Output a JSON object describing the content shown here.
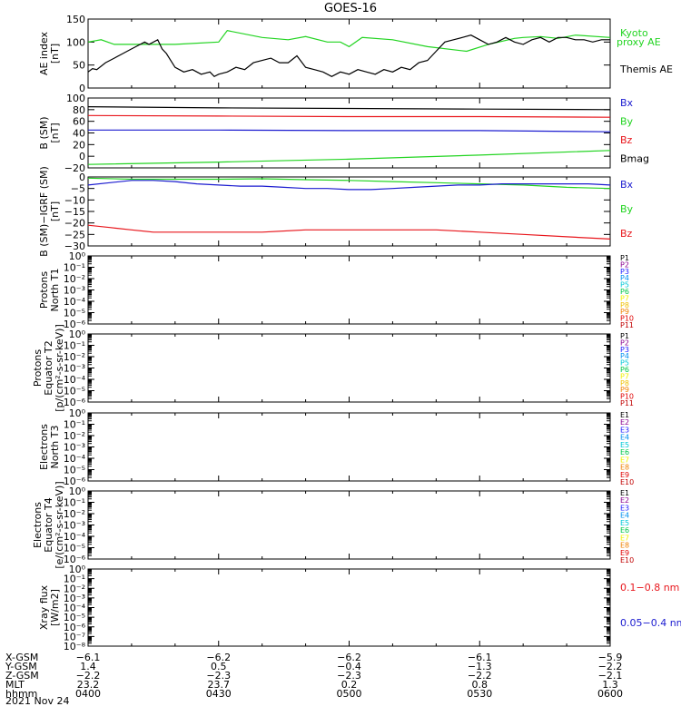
{
  "title": "GOES-16",
  "date": "2021 Nov 24",
  "colors": {
    "black": "#000000",
    "red": "#e8161c",
    "green": "#22d421",
    "blue": "#1c1cd0"
  },
  "chart_data": [
    {
      "id": "ae",
      "type": "line",
      "ylabel": [
        "AE index",
        "[nT]"
      ],
      "ylim": [
        0,
        150
      ],
      "yticks": [
        "0",
        "50",
        "100",
        "150"
      ],
      "legend": [
        {
          "label": "Kyoto",
          "color": "green"
        },
        {
          "label": "proxy AE",
          "color": "green"
        },
        {
          "label": "Themis AE",
          "color": "black"
        }
      ],
      "series": [
        {
          "name": "Kyoto proxy AE",
          "color": "green",
          "x": [
            0,
            3,
            6,
            8,
            12,
            20,
            30,
            32,
            40,
            46,
            50,
            55,
            58,
            60,
            63,
            70,
            78,
            87,
            92,
            98,
            100,
            104,
            108,
            112,
            120
          ],
          "y": [
            100,
            105,
            95,
            95,
            95,
            95,
            100,
            125,
            110,
            105,
            112,
            100,
            100,
            90,
            110,
            105,
            90,
            80,
            95,
            108,
            110,
            112,
            108,
            115,
            110
          ]
        },
        {
          "name": "Themis AE",
          "color": "black",
          "x": [
            0,
            1,
            2,
            4,
            6,
            8,
            10,
            11,
            13,
            14,
            16,
            17,
            18,
            19,
            20,
            22,
            24,
            26,
            28,
            29,
            30,
            32,
            34,
            36,
            38,
            40,
            42,
            44,
            46,
            48,
            50,
            52,
            54,
            56,
            57,
            58,
            60,
            62,
            64,
            66,
            68,
            70,
            72,
            74,
            76,
            78,
            80,
            82,
            84,
            86,
            88,
            90,
            92,
            94,
            96,
            98,
            100,
            102,
            104,
            106,
            108,
            110,
            112,
            114,
            116,
            118,
            120
          ],
          "y": [
            35,
            42,
            40,
            55,
            65,
            75,
            85,
            90,
            100,
            95,
            105,
            85,
            75,
            60,
            45,
            35,
            40,
            30,
            35,
            25,
            30,
            35,
            45,
            40,
            55,
            60,
            65,
            55,
            55,
            70,
            45,
            40,
            35,
            25,
            30,
            35,
            30,
            40,
            35,
            30,
            40,
            35,
            45,
            40,
            55,
            60,
            80,
            100,
            105,
            110,
            115,
            105,
            95,
            100,
            110,
            100,
            95,
            105,
            110,
            100,
            110,
            110,
            105,
            105,
            100,
            105,
            105
          ]
        }
      ]
    },
    {
      "id": "bsm",
      "type": "line",
      "ylabel": [
        "B (SM)",
        "[nT]"
      ],
      "ylim": [
        -20,
        100
      ],
      "yticks": [
        "−20",
        "0",
        "20",
        "40",
        "60",
        "80",
        "100"
      ],
      "legend": [
        {
          "label": "Bx",
          "color": "blue"
        },
        {
          "label": "By",
          "color": "green"
        },
        {
          "label": "Bz",
          "color": "red"
        },
        {
          "label": "Bmag",
          "color": "black"
        }
      ],
      "series": [
        {
          "name": "Bmag",
          "color": "black",
          "x": [
            0,
            30,
            60,
            90,
            120
          ],
          "y": [
            85,
            83,
            82,
            81,
            80
          ]
        },
        {
          "name": "Bz",
          "color": "red",
          "x": [
            0,
            30,
            60,
            90,
            120
          ],
          "y": [
            70,
            69,
            68,
            68,
            67
          ]
        },
        {
          "name": "Bx",
          "color": "blue",
          "x": [
            0,
            30,
            60,
            90,
            120
          ],
          "y": [
            45,
            45,
            44,
            44,
            42
          ]
        },
        {
          "name": "By",
          "color": "green",
          "x": [
            0,
            30,
            60,
            90,
            120
          ],
          "y": [
            -14,
            -10,
            -5,
            2,
            10
          ]
        }
      ]
    },
    {
      "id": "bigrf",
      "type": "line",
      "ylabel": [
        "B (SM)−IGRF (SM)",
        "[nT]"
      ],
      "ylim": [
        -30,
        0
      ],
      "yticks": [
        "−30",
        "−25",
        "−20",
        "−15",
        "−10",
        "−5",
        "0"
      ],
      "legend": [
        {
          "label": "Bx",
          "color": "blue"
        },
        {
          "label": "By",
          "color": "green"
        },
        {
          "label": "Bz",
          "color": "red"
        }
      ],
      "series": [
        {
          "name": "By",
          "color": "green",
          "x": [
            0,
            10,
            20,
            30,
            40,
            50,
            60,
            70,
            80,
            90,
            100,
            110,
            120
          ],
          "y": [
            -0.5,
            -1,
            -1,
            -1,
            -0.8,
            -1.2,
            -1.5,
            -2,
            -2.5,
            -3,
            -3.5,
            -4.5,
            -5
          ]
        },
        {
          "name": "Bx",
          "color": "blue",
          "x": [
            0,
            5,
            10,
            15,
            20,
            25,
            30,
            35,
            40,
            45,
            50,
            55,
            60,
            65,
            70,
            75,
            80,
            85,
            90,
            95,
            100,
            105,
            110,
            115,
            120
          ],
          "y": [
            -3.5,
            -2.5,
            -1.5,
            -1.5,
            -2,
            -3,
            -3.5,
            -4,
            -4,
            -4.5,
            -5,
            -5,
            -5.5,
            -5.5,
            -5,
            -4.5,
            -4,
            -3.5,
            -3.5,
            -3,
            -3,
            -3,
            -3,
            -3,
            -3.5
          ]
        },
        {
          "name": "Bz",
          "color": "red",
          "x": [
            0,
            5,
            10,
            15,
            20,
            25,
            30,
            40,
            50,
            55,
            60,
            70,
            80,
            90,
            100,
            110,
            120
          ],
          "y": [
            -21,
            -22,
            -23,
            -24,
            -24,
            -24,
            -24,
            -24,
            -23,
            -23,
            -23,
            -23,
            -23,
            -24,
            -25,
            -26,
            -27
          ]
        }
      ]
    },
    {
      "id": "pn",
      "type": "line",
      "ylabel": [
        "Protons",
        "North T1"
      ],
      "ylim": [
        -6,
        0
      ],
      "yticks": [
        "10⁻⁶",
        "10⁻⁵",
        "10⁻⁴",
        "10⁻³",
        "10⁻²",
        "10⁻¹",
        "10⁰"
      ],
      "legend": [
        {
          "label": "P1",
          "color": "#000000"
        },
        {
          "label": "P2",
          "color": "#8a0090"
        },
        {
          "label": "P3",
          "color": "#2020ff"
        },
        {
          "label": "P4",
          "color": "#0090f0"
        },
        {
          "label": "P5",
          "color": "#00c8d8"
        },
        {
          "label": "P6",
          "color": "#00c848"
        },
        {
          "label": "P7",
          "color": "#f0f000"
        },
        {
          "label": "P8",
          "color": "#f0c000"
        },
        {
          "label": "P9",
          "color": "#f08000"
        },
        {
          "label": "P10",
          "color": "#e00000"
        },
        {
          "label": "P11",
          "color": "#c00000"
        }
      ],
      "series": []
    },
    {
      "id": "pe",
      "type": "line",
      "ylabel": [
        "Protons",
        "Equator T2",
        "[p/(cm²-s-sr-keV)]"
      ],
      "ylim": [
        -6,
        0
      ],
      "yticks": [
        "10⁻⁶",
        "10⁻⁵",
        "10⁻⁴",
        "10⁻³",
        "10⁻²",
        "10⁻¹",
        "10⁰"
      ],
      "legend": [
        {
          "label": "P1",
          "color": "#000000"
        },
        {
          "label": "P2",
          "color": "#8a0090"
        },
        {
          "label": "P3",
          "color": "#2020ff"
        },
        {
          "label": "P4",
          "color": "#0090f0"
        },
        {
          "label": "P5",
          "color": "#00c8d8"
        },
        {
          "label": "P6",
          "color": "#00c848"
        },
        {
          "label": "P7",
          "color": "#f0f000"
        },
        {
          "label": "P8",
          "color": "#f0c000"
        },
        {
          "label": "P9",
          "color": "#f08000"
        },
        {
          "label": "P10",
          "color": "#e00000"
        },
        {
          "label": "P11",
          "color": "#c00000"
        }
      ],
      "series": []
    },
    {
      "id": "en",
      "type": "line",
      "ylabel": [
        "Electrons",
        "North T3"
      ],
      "ylim": [
        -6,
        0
      ],
      "yticks": [
        "10⁻⁶",
        "10⁻⁵",
        "10⁻⁴",
        "10⁻³",
        "10⁻²",
        "10⁻¹",
        "10⁰"
      ],
      "legend": [
        {
          "label": "E1",
          "color": "#000000"
        },
        {
          "label": "E2",
          "color": "#8a0090"
        },
        {
          "label": "E3",
          "color": "#2020ff"
        },
        {
          "label": "E4",
          "color": "#0090f0"
        },
        {
          "label": "E5",
          "color": "#00c8d8"
        },
        {
          "label": "E6",
          "color": "#00c848"
        },
        {
          "label": "E7",
          "color": "#f0f000"
        },
        {
          "label": "E8",
          "color": "#f08000"
        },
        {
          "label": "E9",
          "color": "#e00000"
        },
        {
          "label": "E10",
          "color": "#c00000"
        }
      ],
      "series": []
    },
    {
      "id": "ee",
      "type": "line",
      "ylabel": [
        "Electrons",
        "Equator T4",
        "[e/(cm²-s-sr-keV)]"
      ],
      "ylim": [
        -6,
        0
      ],
      "yticks": [
        "10⁻⁶",
        "10⁻⁵",
        "10⁻⁴",
        "10⁻³",
        "10⁻²",
        "10⁻¹",
        "10⁰"
      ],
      "legend": [
        {
          "label": "E1",
          "color": "#000000"
        },
        {
          "label": "E2",
          "color": "#8a0090"
        },
        {
          "label": "E3",
          "color": "#2020ff"
        },
        {
          "label": "E4",
          "color": "#0090f0"
        },
        {
          "label": "E5",
          "color": "#00c8d8"
        },
        {
          "label": "E6",
          "color": "#00c848"
        },
        {
          "label": "E7",
          "color": "#f0f000"
        },
        {
          "label": "E8",
          "color": "#f08000"
        },
        {
          "label": "E9",
          "color": "#e00000"
        },
        {
          "label": "E10",
          "color": "#c00000"
        }
      ],
      "series": []
    },
    {
      "id": "xray",
      "type": "line",
      "ylabel": [
        "Xray flux",
        "[W/m2]"
      ],
      "ylim": [
        -8,
        0
      ],
      "yticks": [
        "10⁻⁸",
        "10⁻⁷",
        "10⁻⁶",
        "10⁻⁵",
        "10⁻⁴",
        "10⁻³",
        "10⁻²",
        "10⁻¹",
        "10⁰"
      ],
      "legend": [
        {
          "label": "0.1−0.8 nm",
          "color": "red"
        },
        {
          "label": "0.05−0.4 nm",
          "color": "blue"
        }
      ],
      "series": []
    }
  ],
  "x_axis": {
    "type": "time",
    "range": [
      "0400",
      "0600"
    ],
    "rows": [
      {
        "label": "X-GSM",
        "values": [
          "−6.1",
          "−6.2",
          "−6.2",
          "−6.1",
          "−5.9"
        ]
      },
      {
        "label": "Y-GSM",
        "values": [
          "1.4",
          "0.5",
          "−0.4",
          "−1.3",
          "−2.2"
        ]
      },
      {
        "label": "Z-GSM",
        "values": [
          "−2.2",
          "−2.3",
          "−2.3",
          "−2.2",
          "−2.1"
        ]
      },
      {
        "label": "MLT",
        "values": [
          "23.2",
          "23.7",
          "0.2",
          "0.8",
          "1.3"
        ]
      },
      {
        "label": "hhmm",
        "values": [
          "0400",
          "0430",
          "0500",
          "0530",
          "0600"
        ]
      }
    ]
  }
}
